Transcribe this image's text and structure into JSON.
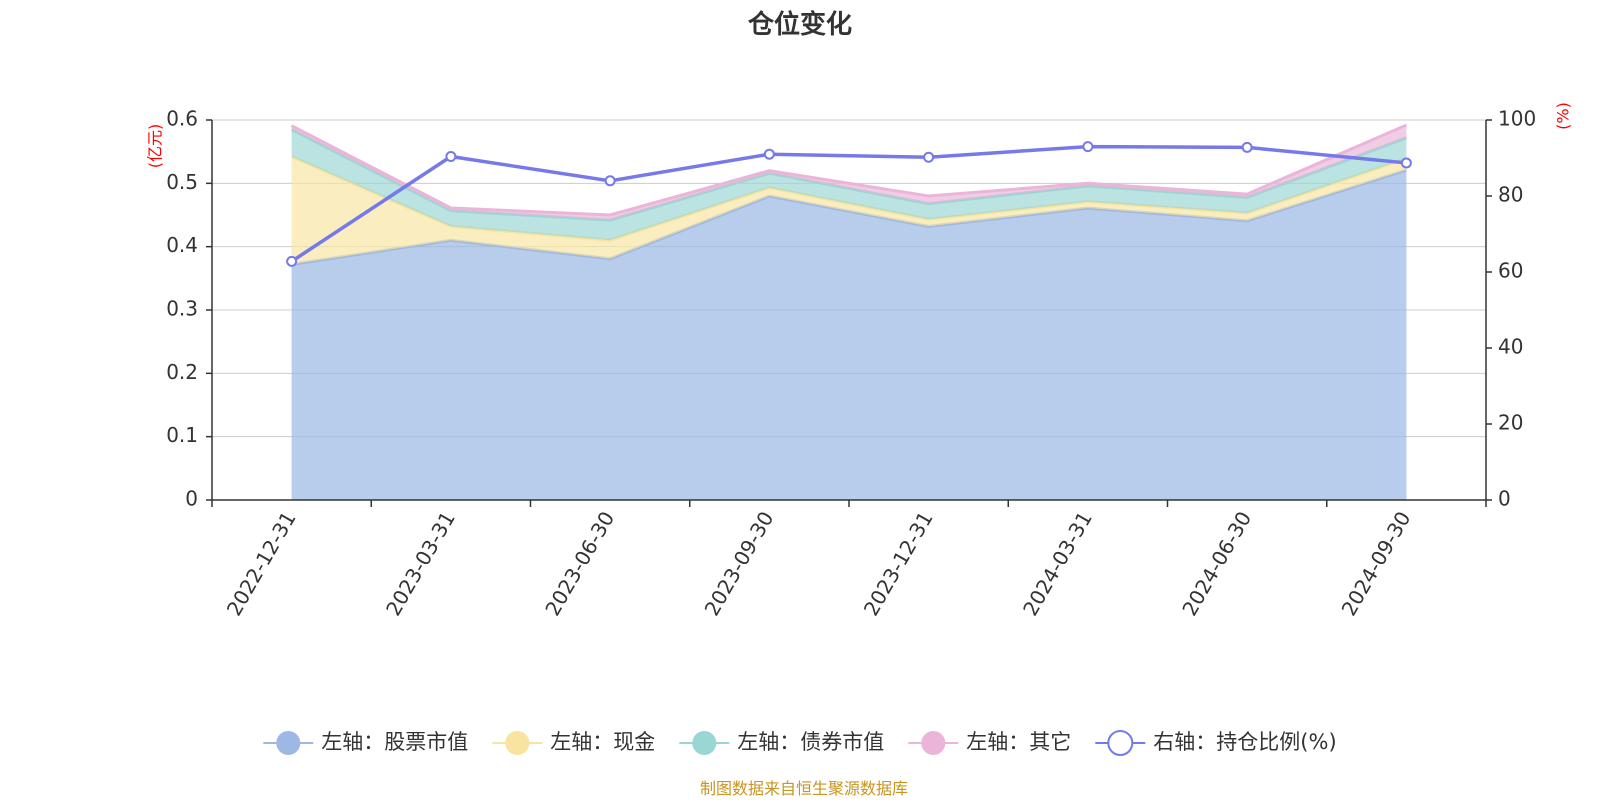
{
  "chart_data": {
    "type": "area",
    "title": "仓位变化",
    "categories": [
      "2022-12-31",
      "2023-03-31",
      "2023-06-30",
      "2023-09-30",
      "2023-12-31",
      "2024-03-31",
      "2024-06-30",
      "2024-09-30"
    ],
    "left_axis": {
      "unit": "(亿元)",
      "range": [
        0,
        0.6
      ],
      "ticks": [
        "0",
        "0.1",
        "0.2",
        "0.3",
        "0.4",
        "0.5",
        "0.6"
      ]
    },
    "right_axis": {
      "unit": "(%)",
      "range": [
        0,
        100
      ],
      "ticks": [
        "0",
        "20",
        "40",
        "60",
        "80",
        "100"
      ]
    },
    "stacked": true,
    "grid": true,
    "legend_position": "bottom",
    "series": [
      {
        "name": "左轴：股票市值",
        "type": "area",
        "axis": "left",
        "color": "#9db8e3",
        "values": [
          0.372,
          0.41,
          0.381,
          0.48,
          0.432,
          0.461,
          0.441,
          0.521
        ]
      },
      {
        "name": "左轴：现金",
        "type": "area",
        "axis": "left",
        "color": "#f8e4a0",
        "values": [
          0.17,
          0.022,
          0.029,
          0.013,
          0.011,
          0.01,
          0.012,
          0.018
        ]
      },
      {
        "name": "左轴：债券市值",
        "type": "area",
        "axis": "left",
        "color": "#9ad6d3",
        "values": [
          0.043,
          0.025,
          0.032,
          0.023,
          0.025,
          0.025,
          0.025,
          0.033
        ]
      },
      {
        "name": "左轴：其它",
        "type": "area",
        "axis": "left",
        "color": "#eab5d8",
        "values": [
          0.006,
          0.004,
          0.008,
          0.004,
          0.012,
          0.004,
          0.005,
          0.02
        ]
      },
      {
        "name": "右轴：持仓比例(%)",
        "type": "line",
        "axis": "right",
        "color": "#7579ea",
        "values": [
          62.8,
          90.4,
          84.0,
          91.0,
          90.2,
          93.0,
          92.8,
          88.7
        ]
      }
    ]
  },
  "footer": {
    "source": "制图数据来自恒生聚源数据库"
  }
}
